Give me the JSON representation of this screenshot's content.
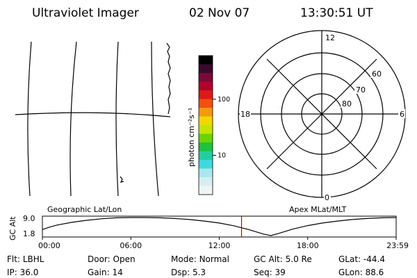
{
  "header": {
    "instrument": "Ultraviolet Imager",
    "date": "02 Nov 07",
    "time": "13:30:51 UT"
  },
  "colorbar": {
    "unit_label": "photon cm⁻²s⁻¹",
    "tick_labels": [
      "100",
      "10"
    ],
    "tick_values": [
      100,
      10
    ],
    "range": [
      2,
      600
    ],
    "scale": "log",
    "colors": [
      "#000000",
      "#3a0a2a",
      "#7a0a3a",
      "#b4002a",
      "#dc1a1a",
      "#f05010",
      "#f49a10",
      "#f0d800",
      "#c4e400",
      "#6ad400",
      "#20c040",
      "#20d0a0",
      "#40d8e0",
      "#a8e8ec",
      "#d8eef0",
      "#eef4f4"
    ]
  },
  "geo_panel": {
    "label": "Geographic Lat/Lon"
  },
  "polar_panel": {
    "label": "Apex MLat/MLT",
    "mlt_labels": [
      "12",
      "6",
      "0",
      "18"
    ],
    "lat_labels": [
      "60",
      "70",
      "80"
    ]
  },
  "chart_data": {
    "type": "line",
    "ylabel": "GC Alt",
    "yticks": [
      "9.0",
      "1.8"
    ],
    "ylim": [
      1.8,
      9.0
    ],
    "x_ticks": [
      "00:00",
      "06:00",
      "12:00",
      "18:00",
      "23:59"
    ],
    "xlim": [
      0,
      24
    ],
    "current_time_hours": 13.51,
    "series": [
      {
        "x": [
          0,
          0.5,
          1,
          2,
          3,
          4,
          5,
          6,
          7,
          8,
          9,
          10,
          11,
          12,
          13,
          14,
          15,
          15.5,
          16,
          17,
          18,
          19,
          20,
          21,
          22,
          23,
          24
        ],
        "y": [
          4.2,
          5.2,
          6.0,
          7.1,
          7.9,
          8.5,
          8.9,
          9.0,
          9.0,
          8.9,
          8.6,
          8.2,
          7.6,
          6.8,
          5.7,
          4.2,
          2.4,
          1.8,
          2.6,
          4.4,
          5.8,
          6.8,
          7.6,
          8.2,
          8.6,
          8.9,
          9.0
        ]
      }
    ]
  },
  "footer": {
    "row1": [
      {
        "label": "Flt:",
        "value": "LBHL"
      },
      {
        "label": "Door:",
        "value": "Open"
      },
      {
        "label": "Mode:",
        "value": "Normal"
      },
      {
        "label": "GC Alt:",
        "value": "5.0 Re"
      },
      {
        "label": "GLat:",
        "value": "-44.4"
      }
    ],
    "row2": [
      {
        "label": "IP:",
        "value": "36.0"
      },
      {
        "label": "Gain:",
        "value": "14"
      },
      {
        "label": "Dsp:",
        "value": "5.3"
      },
      {
        "label": "Seq:",
        "value": "39"
      },
      {
        "label": "GLon:",
        "value": "88.6"
      }
    ]
  }
}
